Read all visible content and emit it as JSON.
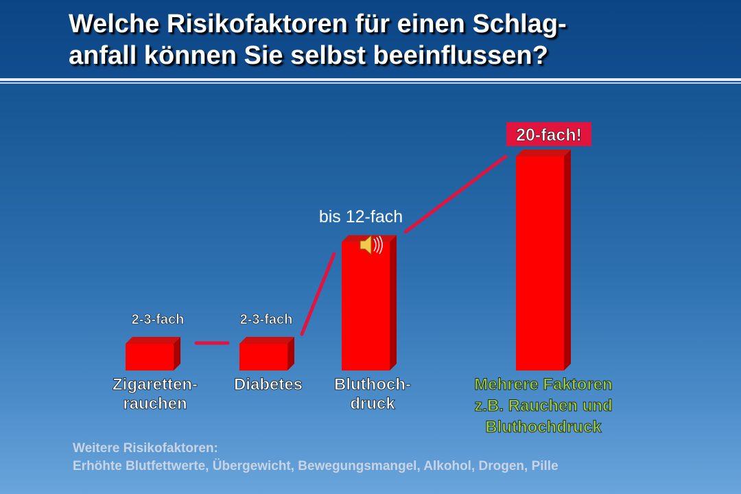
{
  "title": "Welche Risikofaktoren für einen Schlag-\nanfall können Sie selbst beeinflussen?",
  "chart_data": {
    "type": "bar",
    "categories": [
      [
        "Zigaretten-",
        "rauchen"
      ],
      [
        "Diabetes"
      ],
      [
        "Bluthoch-",
        "druck"
      ],
      [
        "Mehrere Faktoren",
        "z.B. Rauchen und",
        "Bluthochdruck"
      ]
    ],
    "values": [
      2.5,
      2.5,
      12,
      20
    ],
    "value_labels": [
      "2-3-fach",
      "2-3-fach",
      "bis 12-fach",
      "20-fach!"
    ],
    "bar_color": "#ff0000",
    "bar_side_color": "#a80000",
    "bar_top_color": "#cc1010",
    "connector_color": "#e0143c",
    "highlight_label_bg": "#e0143c",
    "multi_factor_label_color": "#9ccc3c",
    "label_color": "#ffffff"
  },
  "sound_icon": "speaker-icon",
  "footer": {
    "heading": "Weitere Risikofaktoren:",
    "text": "Erhöhte Blutfettwerte, Übergewicht, Bewegungsmangel, Alkohol, Drogen, Pille"
  }
}
